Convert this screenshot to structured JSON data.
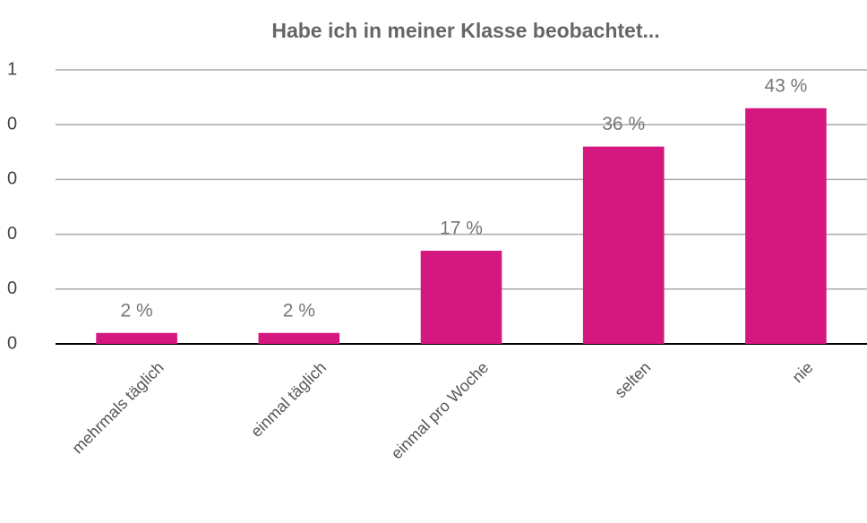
{
  "chart_data": {
    "type": "bar",
    "title": "Habe ich in meiner Klasse beobachtet...",
    "categories": [
      "mehrmals täglich",
      "einmal täglich",
      "einmal pro Woche",
      "selten",
      "nie"
    ],
    "values": [
      0.02,
      0.02,
      0.17,
      0.36,
      0.43
    ],
    "value_labels": [
      "2 %",
      "2 %",
      "17 %",
      "36 %",
      "43 %"
    ],
    "color": "#d5187f",
    "ylim": [
      0,
      0.5
    ],
    "yticks": [
      0,
      {
        "value": 0.1,
        "label": "0"
      },
      {
        "value": 0.2,
        "label": "0"
      },
      {
        "value": 0.3,
        "label": "0"
      },
      {
        "value": 0.4,
        "label": "0"
      },
      {
        "value": 0.5,
        "label": "1"
      }
    ],
    "grid": true
  }
}
